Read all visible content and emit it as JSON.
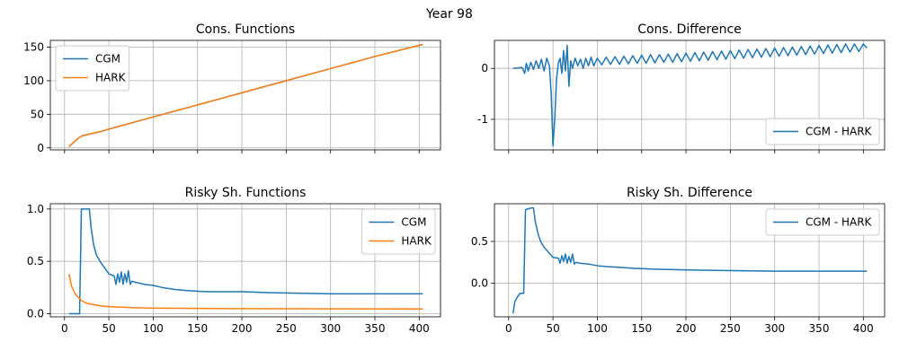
{
  "figure": {
    "suptitle": "Year 98"
  },
  "colors": {
    "blue": "#1f77b4",
    "orange": "#ff7f0e",
    "grid": "#b0b0b0",
    "legend_border": "#cccccc"
  },
  "chart_data": [
    {
      "id": "cons-functions",
      "type": "line",
      "title": "Cons. Functions",
      "xlabel": "",
      "ylabel": "",
      "xlim": [
        -16,
        424
      ],
      "ylim": [
        -3,
        160
      ],
      "xticks": [
        0,
        50,
        100,
        150,
        200,
        250,
        300,
        350,
        400
      ],
      "show_xtick_labels": false,
      "yticks": [
        0,
        50,
        100,
        150
      ],
      "grid": true,
      "legend": "upper-left",
      "series": [
        {
          "name": "CGM",
          "color": "#1f77b4",
          "x": [
            5,
            10,
            15,
            20,
            30,
            40,
            50,
            100,
            150,
            200,
            250,
            300,
            350,
            404
          ],
          "y": [
            2,
            8,
            14,
            18,
            21,
            24,
            28,
            46,
            64,
            82,
            100,
            118,
            136,
            154
          ]
        },
        {
          "name": "HARK",
          "color": "#ff7f0e",
          "x": [
            5,
            10,
            15,
            20,
            30,
            40,
            50,
            100,
            150,
            200,
            250,
            300,
            350,
            404
          ],
          "y": [
            2,
            8,
            14,
            18,
            21,
            24,
            28,
            46,
            64,
            82,
            100,
            118,
            136,
            154
          ]
        }
      ]
    },
    {
      "id": "cons-difference",
      "type": "line",
      "title": "Cons. Difference",
      "xlabel": "",
      "ylabel": "",
      "xlim": [
        -16,
        424
      ],
      "ylim": [
        -1.6,
        0.55
      ],
      "xticks": [
        0,
        50,
        100,
        150,
        200,
        250,
        300,
        350,
        400
      ],
      "show_xtick_labels": false,
      "yticks": [
        -1,
        0
      ],
      "grid": true,
      "legend": "lower-right",
      "series": [
        {
          "name": "CGM - HARK",
          "color": "#1f77b4",
          "x": [
            5,
            15,
            18,
            20,
            22,
            25,
            28,
            31,
            34,
            37,
            40,
            43,
            46,
            48,
            50,
            52,
            54,
            56,
            58,
            60,
            62,
            64,
            66,
            68,
            70,
            72,
            75,
            78,
            81,
            84,
            87,
            90,
            93,
            96,
            100,
            105,
            110,
            115,
            120,
            125,
            130,
            135,
            140,
            145,
            150,
            155,
            160,
            165,
            170,
            175,
            180,
            185,
            190,
            195,
            200,
            205,
            210,
            215,
            220,
            225,
            230,
            235,
            240,
            245,
            250,
            255,
            260,
            265,
            270,
            275,
            280,
            285,
            290,
            295,
            300,
            305,
            310,
            315,
            320,
            325,
            330,
            335,
            340,
            345,
            350,
            355,
            360,
            365,
            370,
            375,
            380,
            385,
            390,
            395,
            400,
            404
          ],
          "y": [
            0.0,
            0.02,
            -0.1,
            0.1,
            -0.05,
            0.12,
            -0.02,
            0.15,
            0.0,
            0.18,
            -0.05,
            0.2,
            0.05,
            -0.5,
            -1.52,
            -1.0,
            -0.2,
            0.1,
            0.2,
            -0.1,
            0.35,
            -0.05,
            0.45,
            -0.35,
            0.15,
            0.0,
            0.2,
            0.05,
            0.18,
            0.0,
            0.2,
            0.05,
            0.22,
            0.05,
            0.2,
            0.07,
            0.22,
            0.08,
            0.23,
            0.08,
            0.24,
            0.09,
            0.25,
            0.1,
            0.26,
            0.1,
            0.27,
            0.11,
            0.27,
            0.12,
            0.28,
            0.12,
            0.29,
            0.13,
            0.3,
            0.14,
            0.31,
            0.15,
            0.32,
            0.16,
            0.33,
            0.17,
            0.34,
            0.18,
            0.35,
            0.19,
            0.36,
            0.2,
            0.37,
            0.21,
            0.38,
            0.22,
            0.39,
            0.23,
            0.4,
            0.24,
            0.41,
            0.25,
            0.42,
            0.26,
            0.43,
            0.27,
            0.44,
            0.28,
            0.45,
            0.29,
            0.46,
            0.3,
            0.47,
            0.31,
            0.48,
            0.32,
            0.48,
            0.33,
            0.48,
            0.4
          ]
        }
      ]
    },
    {
      "id": "risky-functions",
      "type": "line",
      "title": "Risky Sh. Functions",
      "xlabel": "",
      "ylabel": "",
      "xlim": [
        -16,
        424
      ],
      "ylim": [
        -0.03,
        1.05
      ],
      "xticks": [
        0,
        50,
        100,
        150,
        200,
        250,
        300,
        350,
        400
      ],
      "show_xtick_labels": true,
      "yticks": [
        0.0,
        0.5,
        1.0
      ],
      "grid": true,
      "legend": "upper-right",
      "series": [
        {
          "name": "CGM",
          "color": "#1f77b4",
          "x": [
            5,
            17,
            19,
            20,
            28,
            30,
            33,
            36,
            40,
            45,
            50,
            56,
            58,
            60,
            62,
            64,
            66,
            68,
            70,
            72,
            74,
            76,
            80,
            90,
            100,
            110,
            125,
            140,
            160,
            200,
            232,
            300,
            404
          ],
          "y": [
            0.0,
            0.0,
            1.0,
            1.0,
            1.0,
            0.82,
            0.65,
            0.56,
            0.5,
            0.44,
            0.38,
            0.36,
            0.28,
            0.38,
            0.3,
            0.4,
            0.28,
            0.38,
            0.3,
            0.41,
            0.28,
            0.31,
            0.3,
            0.28,
            0.27,
            0.25,
            0.23,
            0.22,
            0.21,
            0.21,
            0.2,
            0.19,
            0.19
          ]
        },
        {
          "name": "HARK",
          "color": "#ff7f0e",
          "x": [
            5,
            8,
            12,
            16,
            20,
            25,
            30,
            40,
            50,
            60,
            80,
            100,
            150,
            200,
            300,
            404
          ],
          "y": [
            0.38,
            0.26,
            0.19,
            0.15,
            0.12,
            0.1,
            0.09,
            0.075,
            0.068,
            0.063,
            0.057,
            0.053,
            0.05,
            0.048,
            0.046,
            0.045
          ]
        }
      ]
    },
    {
      "id": "risky-difference",
      "type": "line",
      "title": "Risky Sh. Difference",
      "xlabel": "",
      "ylabel": "",
      "xlim": [
        -16,
        424
      ],
      "ylim": [
        -0.4,
        0.95
      ],
      "xticks": [
        0,
        50,
        100,
        150,
        200,
        250,
        300,
        350,
        400
      ],
      "show_xtick_labels": true,
      "yticks": [
        0.0,
        0.5
      ],
      "grid": true,
      "legend": "upper-right",
      "series": [
        {
          "name": "CGM - HARK",
          "color": "#1f77b4",
          "x": [
            5,
            7,
            10,
            13,
            17,
            19,
            22,
            26,
            28,
            30,
            33,
            36,
            40,
            45,
            50,
            56,
            58,
            60,
            62,
            64,
            66,
            68,
            70,
            72,
            74,
            76,
            80,
            90,
            100,
            110,
            125,
            140,
            160,
            200,
            232,
            300,
            404
          ],
          "y": [
            -0.36,
            -0.22,
            -0.16,
            -0.12,
            -0.12,
            0.88,
            0.89,
            0.9,
            0.9,
            0.74,
            0.6,
            0.5,
            0.43,
            0.37,
            0.31,
            0.3,
            0.24,
            0.33,
            0.26,
            0.35,
            0.24,
            0.32,
            0.25,
            0.35,
            0.23,
            0.25,
            0.24,
            0.23,
            0.21,
            0.2,
            0.19,
            0.18,
            0.17,
            0.16,
            0.155,
            0.145,
            0.145
          ]
        }
      ]
    }
  ]
}
